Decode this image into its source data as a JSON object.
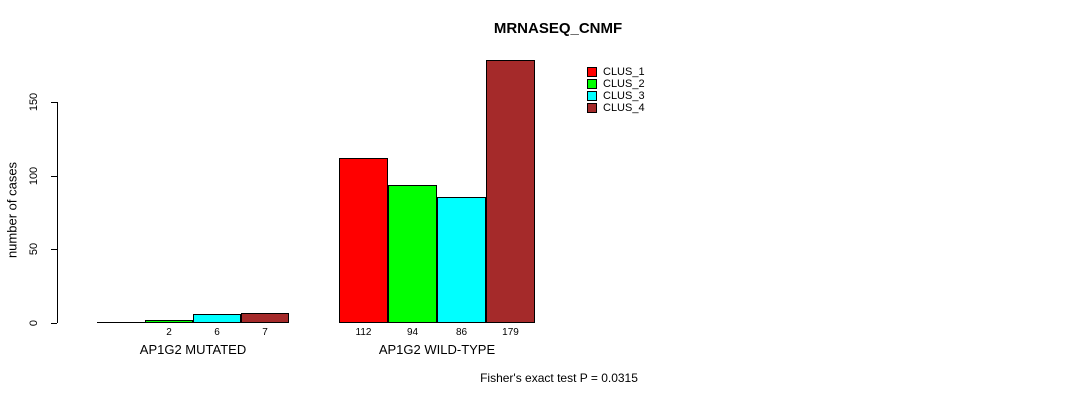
{
  "chart_data": {
    "type": "bar",
    "title": "MRNASEQ_CNMF",
    "ylabel": "number of cases",
    "xlabel": "",
    "footer": "Fisher's exact test P = 0.0315",
    "yticks": [
      0,
      50,
      100,
      150
    ],
    "ylim": [
      0,
      185
    ],
    "grid": false,
    "legend_position": "top-right",
    "series": [
      {
        "name": "CLUS_1",
        "color": "#ff0000"
      },
      {
        "name": "CLUS_2",
        "color": "#00ff00"
      },
      {
        "name": "CLUS_3",
        "color": "#00ffff"
      },
      {
        "name": "CLUS_4",
        "color": "#a52a2a"
      }
    ],
    "categories": [
      "AP1G2 MUTATED",
      "AP1G2 WILD-TYPE"
    ],
    "groups": [
      {
        "label": "AP1G2 MUTATED",
        "values": [
          0,
          2,
          6,
          7
        ],
        "value_labels": [
          "",
          "2",
          "6",
          "7"
        ]
      },
      {
        "label": "AP1G2 WILD-TYPE",
        "values": [
          112,
          94,
          86,
          179
        ],
        "value_labels": [
          "112",
          "94",
          "86",
          "179"
        ]
      }
    ]
  }
}
